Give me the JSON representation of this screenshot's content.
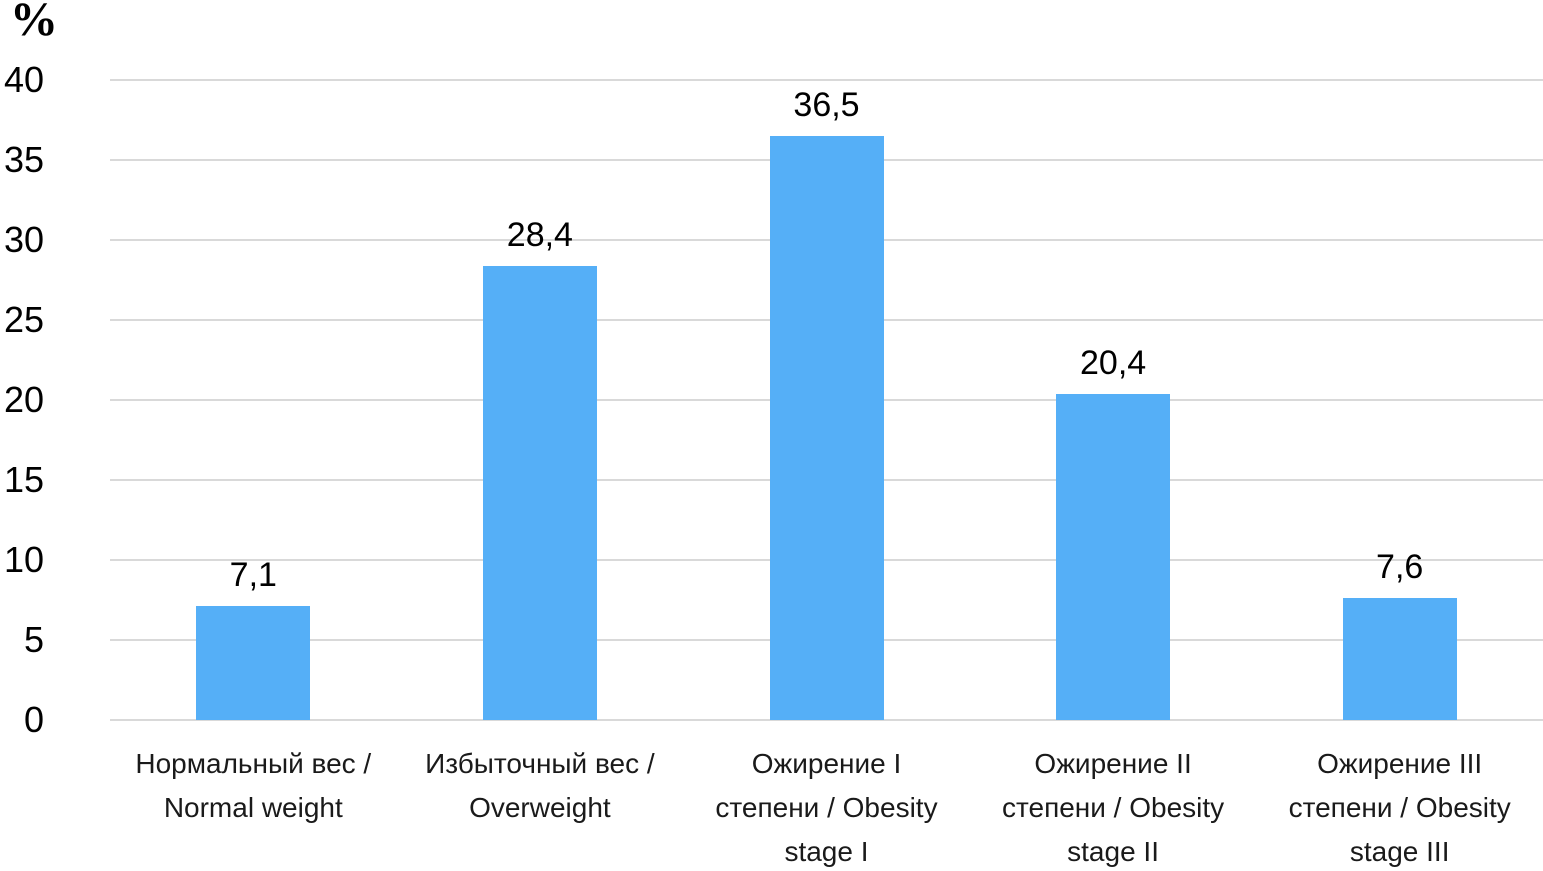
{
  "chart_data": {
    "type": "bar",
    "title": "",
    "xlabel": "",
    "ylabel": "%",
    "categories": [
      "Нормальный вес / Normal weight",
      "Избыточный вес / Overweight",
      "Ожирение I степени / Obesity stage I",
      "Ожирение II степени / Obesity stage II",
      "Ожирение III степени / Obesity stage III"
    ],
    "category_lines": [
      [
        "Нормальный вес /",
        "Normal weight"
      ],
      [
        "Избыточный вес /",
        "Overweight"
      ],
      [
        "Ожирение I",
        "степени / Obesity",
        "stage I"
      ],
      [
        "Ожирение II",
        "степени / Obesity",
        "stage II"
      ],
      [
        "Ожирение III",
        "степени / Obesity",
        "stage III"
      ]
    ],
    "values": [
      7.1,
      28.4,
      36.5,
      20.4,
      7.6
    ],
    "value_labels": [
      "7,1",
      "28,4",
      "36,5",
      "20,4",
      "7,6"
    ],
    "ylim": [
      0,
      40
    ],
    "yticks": [
      0,
      5,
      10,
      15,
      20,
      25,
      30,
      35,
      40
    ],
    "grid": true,
    "legend": "none",
    "bar_color": "#55AFF7",
    "gridline_color": "#D9D9D9"
  }
}
